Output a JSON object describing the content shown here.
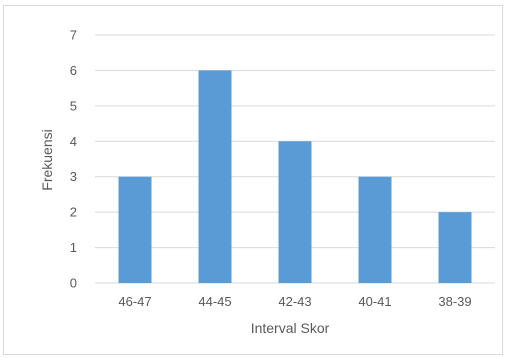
{
  "chart_data": {
    "type": "bar",
    "title": "",
    "xlabel": "Interval Skor",
    "ylabel": "Frekuensi",
    "categories": [
      "46-47",
      "44-45",
      "42-43",
      "40-41",
      "38-39"
    ],
    "values": [
      3,
      6,
      4,
      3,
      2
    ],
    "ylim": [
      0,
      7
    ],
    "yticks": [
      "0",
      "1",
      "2",
      "3",
      "4",
      "5",
      "6",
      "7"
    ],
    "grid": true,
    "legend": "none",
    "bar_color": "#5b9bd5",
    "grid_color": "#d9d9d9",
    "text_color": "#595959"
  }
}
